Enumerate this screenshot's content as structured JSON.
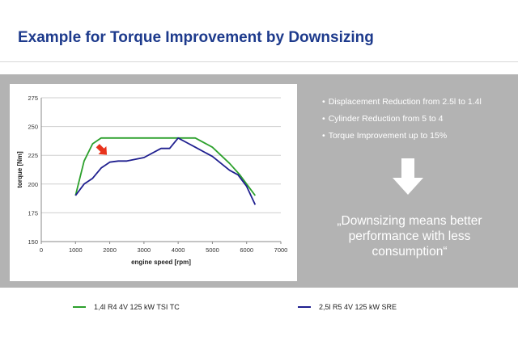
{
  "slide": {
    "title": "Example for Torque Improvement by Downsizing",
    "bullets": [
      "Displacement Reduction from 2.5l to 1.4l",
      "Cylinder Reduction from 5 to 4",
      "Torque Improvement up to 15%"
    ],
    "bullet_marker": "•",
    "quote": "„Downsizing means better performance with less consumption“",
    "arrow_icon": "down-arrow-icon",
    "highlight_icon": "red-arrow-icon"
  },
  "chart_data": {
    "type": "line",
    "xlabel": "engine speed [rpm]",
    "ylabel": "torque [Nm]",
    "xlim": [
      0,
      7000
    ],
    "ylim": [
      150,
      275
    ],
    "xticks": [
      0,
      1000,
      2000,
      3000,
      4000,
      5000,
      6000,
      7000
    ],
    "yticks": [
      150,
      175,
      200,
      225,
      250,
      275
    ],
    "grid": "horizontal",
    "legend_position": "bottom",
    "series": [
      {
        "name": "1,4l R4 4V 125 kW TSI TC",
        "color": "#2ca02c",
        "x": [
          1000,
          1250,
          1500,
          1750,
          2000,
          3000,
          4000,
          4500,
          5000,
          5500,
          5800,
          6000,
          6250
        ],
        "y": [
          190,
          220,
          235,
          240,
          240,
          240,
          240,
          240,
          232,
          218,
          208,
          200,
          190
        ]
      },
      {
        "name": "2,5l R5 4V 125 kW SRE",
        "color": "#1f1f8f",
        "x": [
          1000,
          1250,
          1500,
          1750,
          2000,
          2250,
          2500,
          3000,
          3500,
          3750,
          4000,
          4250,
          4500,
          5000,
          5500,
          5750,
          6000,
          6250
        ],
        "y": [
          190,
          200,
          205,
          214,
          219,
          220,
          220,
          223,
          231,
          231,
          240,
          236,
          232,
          224,
          212,
          208,
          198,
          182
        ]
      }
    ]
  }
}
